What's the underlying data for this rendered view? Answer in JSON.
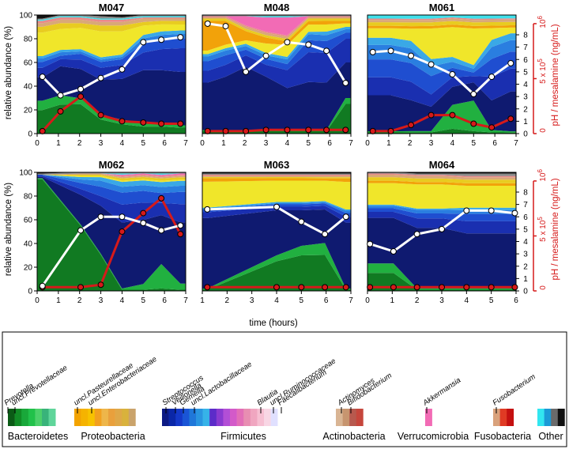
{
  "figure": {
    "xlabel": "time (hours)",
    "ylabel_left": "relative abundance (%)",
    "ylabel_right": "pH / mesalamine (ng/mL)",
    "right_tick_top": "10",
    "right_tick_top_exp": "6",
    "right_tick_mid": "5 x 10",
    "right_tick_mid_exp": "5",
    "right_tick_zero": "0"
  },
  "chart_data": [
    {
      "type": "area",
      "title": "M047",
      "x": [
        0.25,
        1.1,
        2.05,
        3,
        4,
        5,
        5.85,
        6.75
      ],
      "ph": [
        4.6,
        3.1,
        3.6,
        4.5,
        5.2,
        7.4,
        7.6,
        7.8
      ],
      "mesalamine": [
        0.2,
        1.8,
        3,
        1.5,
        1,
        0.9,
        0.8,
        0.8
      ],
      "xlim": [
        0,
        7
      ],
      "ylim": [
        0,
        100
      ],
      "ph_lim": [
        0,
        9.6
      ],
      "mes_units": "x10^5 ng/mL"
    },
    {
      "type": "area",
      "title": "M048",
      "x": [
        0.25,
        1.1,
        2.05,
        3,
        4,
        5,
        5.85,
        6.75
      ],
      "ph": [
        8.9,
        8.7,
        5,
        6.3,
        7.4,
        7.2,
        6.7,
        4.1
      ],
      "mesalamine": [
        0.2,
        0.2,
        0.2,
        0.3,
        0.3,
        0.3,
        0.3,
        0.3
      ],
      "xlim": [
        0,
        7
      ],
      "ylim": [
        0,
        100
      ],
      "ph_lim": [
        0,
        9.6
      ],
      "mes_units": "x10^5 ng/mL"
    },
    {
      "type": "area",
      "title": "M061",
      "x": [
        0.25,
        1.1,
        2.05,
        3,
        4,
        5,
        5.85,
        6.75
      ],
      "ph": [
        6.6,
        6.7,
        6.3,
        5.6,
        4.8,
        3.2,
        4.6,
        5.7
      ],
      "mesalamine": [
        0.2,
        0.2,
        0.7,
        1.5,
        1.5,
        0.8,
        0.5,
        1.2
      ],
      "xlim": [
        0,
        7
      ],
      "ylim": [
        0,
        100
      ],
      "ph_lim": [
        0,
        9.6
      ],
      "mes_units": "x10^5 ng/mL"
    },
    {
      "type": "area",
      "title": "M062",
      "x": [
        0.25,
        2.05,
        3,
        4,
        5,
        5.85,
        6.75
      ],
      "ph": [
        0.4,
        4.9,
        6,
        6,
        5.5,
        4.9,
        5.3
      ],
      "mesalamine": [
        0.3,
        0.3,
        0.5,
        4.8,
        6.3,
        7.5,
        4.6
      ],
      "xlim": [
        0,
        7
      ],
      "ylim": [
        0,
        100
      ],
      "ph_lim": [
        0,
        9.6
      ],
      "mes_units": "x10^5 ng/mL"
    },
    {
      "type": "area",
      "title": "M063",
      "x": [
        1.2,
        4,
        5,
        5.95,
        6.8
      ],
      "ph": [
        6.6,
        6.8,
        5.6,
        4.6,
        6
      ],
      "mesalamine": [
        0.3,
        0.3,
        0.3,
        0.3,
        0.3
      ],
      "xlim": [
        1,
        7
      ],
      "ylim": [
        0,
        100
      ],
      "ph_lim": [
        0,
        9.6
      ],
      "mes_units": "x10^5 ng/mL"
    },
    {
      "type": "area",
      "title": "M064",
      "x": [
        0.1,
        1.05,
        2,
        3,
        4,
        5,
        5.95
      ],
      "ph": [
        3.8,
        3.2,
        4.6,
        5,
        6.5,
        6.5,
        6.3
      ],
      "mesalamine": [
        0.3,
        0.3,
        0.3,
        0.3,
        0.3,
        0.3,
        0.3
      ],
      "xlim": [
        0,
        6
      ],
      "ylim": [
        0,
        100
      ],
      "ph_lim": [
        0,
        9.6
      ],
      "mes_units": "x10^5 ng/mL"
    }
  ],
  "legend": {
    "groups": [
      {
        "label": "Bacteroidetes",
        "colors": [
          "#0b5b16",
          "#118c26",
          "#19a83a",
          "#21c14a",
          "#4cd06a",
          "#39b37a",
          "#5fd59a"
        ]
      },
      {
        "label": "Proteobacteria",
        "colors": [
          "#f3a300",
          "#f5b300",
          "#f7c200",
          "#f2a020",
          "#eeb64a",
          "#e9a03c",
          "#dfa848",
          "#d9b23c",
          "#caa36b"
        ]
      },
      {
        "label": "Firmicutes",
        "colors": [
          "#0c1a84",
          "#0a27a8",
          "#1438c8",
          "#1a55d6",
          "#1f77d9",
          "#2995e0",
          "#36b3e8",
          "#5c2cc9",
          "#8a3ad0",
          "#b24fd6",
          "#d35ac9",
          "#e26eb7",
          "#e88eb2",
          "#f0a6c0",
          "#f6bfd2",
          "#f8d6e4",
          "#e0e0ff"
        ]
      },
      {
        "label": "Actinobacteria",
        "colors": [
          "#d9b594",
          "#c7956f",
          "#b7594e",
          "#c6463c"
        ]
      },
      {
        "label": "Verrucomicrobia",
        "colors": [
          "#f26bb5"
        ]
      },
      {
        "label": "Fusobacteria",
        "colors": [
          "#d9a27c",
          "#e03a24",
          "#c41010"
        ]
      },
      {
        "label": "Other",
        "colors": [
          "#32e6f0",
          "#1b9ad6",
          "#6b6b6b",
          "#111111"
        ]
      }
    ],
    "taxa": [
      "Prevotella",
      "uncl.Prevotellaceae",
      "uncl.Pasteurellaceae",
      "uncl.Enterobacteriaceae",
      "Streptococcus",
      "Veillonella",
      "Gemella",
      "uncl.Lactobacillaceae",
      "Blautia",
      "uncl.Ruminococcaceae",
      "Faecalibacterium",
      "Actinomyces",
      "Bifidobacterium",
      "Akkermansia",
      "Fusobacterium"
    ]
  },
  "colors": {
    "ph_line": "#ffffff",
    "mesalamine_line": "#d61a1a",
    "axis_red": "#d61a1a"
  }
}
